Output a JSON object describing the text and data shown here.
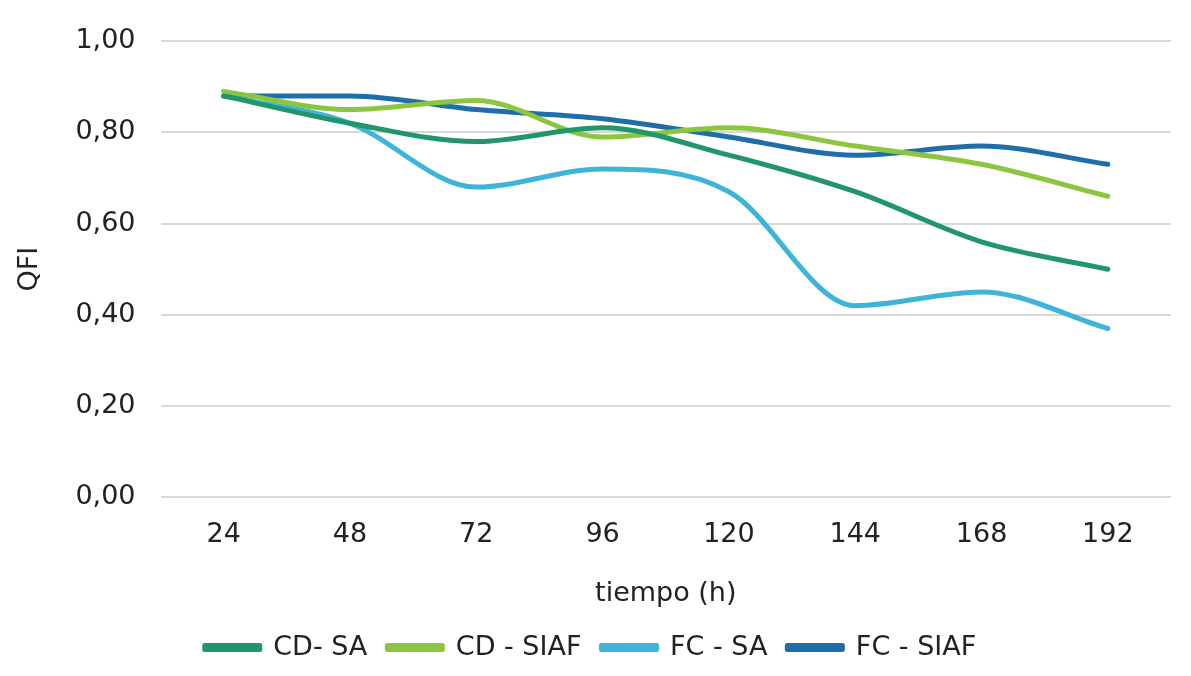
{
  "chart_data": {
    "type": "line",
    "xlabel": "tiempo (h)",
    "ylabel": "QFI",
    "categories": [
      "24",
      "48",
      "72",
      "96",
      "120",
      "144",
      "168",
      "192"
    ],
    "series": [
      {
        "name": "CD- SA",
        "color": "#21956c",
        "values": [
          0.88,
          0.82,
          0.78,
          0.81,
          0.75,
          0.67,
          0.56,
          0.5
        ]
      },
      {
        "name": "CD - SIAF",
        "color": "#8cc540",
        "values": [
          0.89,
          0.85,
          0.87,
          0.79,
          0.81,
          0.77,
          0.73,
          0.66
        ]
      },
      {
        "name": "FC - SA",
        "color": "#3db4d8",
        "values": [
          0.88,
          0.82,
          0.68,
          0.72,
          0.67,
          0.42,
          0.45,
          0.37
        ]
      },
      {
        "name": "FC - SIAF",
        "color": "#1f6ea9",
        "values": [
          0.88,
          0.88,
          0.85,
          0.83,
          0.79,
          0.75,
          0.77,
          0.73
        ]
      }
    ],
    "ylim": [
      0,
      1
    ],
    "yticks": [
      {
        "value": 0,
        "label": "0,00"
      },
      {
        "value": 0.2,
        "label": "0,20"
      },
      {
        "value": 0.4,
        "label": "0,40"
      },
      {
        "value": 0.6,
        "label": "0,60"
      },
      {
        "value": 0.8,
        "label": "0,80"
      },
      {
        "value": 1,
        "label": "1,00"
      }
    ],
    "grid": "y",
    "legend": "bottom",
    "marker": "none",
    "line_style": "solid"
  }
}
